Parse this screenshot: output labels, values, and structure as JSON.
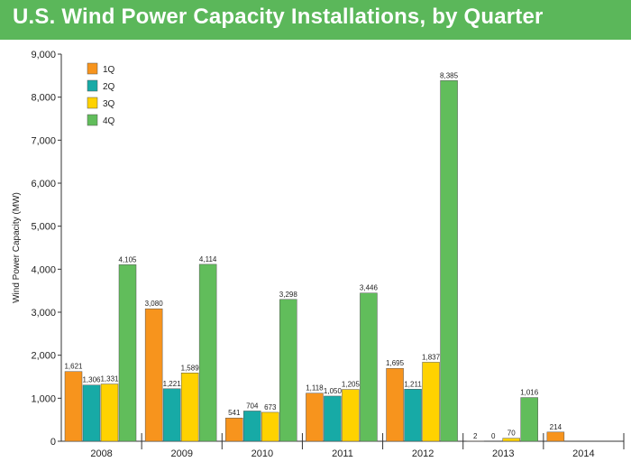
{
  "title": "U.S. Wind Power Capacity Installations, by Quarter",
  "colors": {
    "header_bg": "#5bb75a",
    "1Q": "#f7941d",
    "2Q": "#17aaa6",
    "3Q": "#ffd200",
    "4Q": "#61bd5b"
  },
  "chart_data": {
    "type": "bar",
    "title": "",
    "xlabel": "",
    "ylabel": "Wind Power Capacity (MW)",
    "ylim": [
      0,
      9000
    ],
    "yticks": [
      "0",
      "1,000",
      "2,000",
      "3,000",
      "4,000",
      "5,000",
      "6,000",
      "7,000",
      "8,000",
      "9,000"
    ],
    "grid": false,
    "legend_position": "top-left",
    "categories": [
      "2008",
      "2009",
      "2010",
      "2011",
      "2012",
      "2013",
      "2014"
    ],
    "series": [
      {
        "name": "1Q",
        "values": [
          1621,
          3080,
          541,
          1118,
          1695,
          2,
          214
        ],
        "labels": [
          "1,621",
          "3,080",
          "541",
          "1,118",
          "1,695",
          "2",
          "214"
        ]
      },
      {
        "name": "2Q",
        "values": [
          1306,
          1221,
          704,
          1050,
          1211,
          0,
          null
        ],
        "labels": [
          "1,306",
          "1,221",
          "704",
          "1,050",
          "1,211",
          "0",
          null
        ]
      },
      {
        "name": "3Q",
        "values": [
          1331,
          1589,
          673,
          1205,
          1837,
          70,
          null
        ],
        "labels": [
          "1,331",
          "1,589",
          "673",
          "1,205",
          "1,837",
          "70",
          null
        ]
      },
      {
        "name": "4Q",
        "values": [
          4105,
          4114,
          3298,
          3446,
          8385,
          1016,
          null
        ],
        "labels": [
          "4,105",
          "4,114",
          "3,298",
          "3,446",
          "8,385",
          "1,016",
          null
        ]
      }
    ]
  }
}
